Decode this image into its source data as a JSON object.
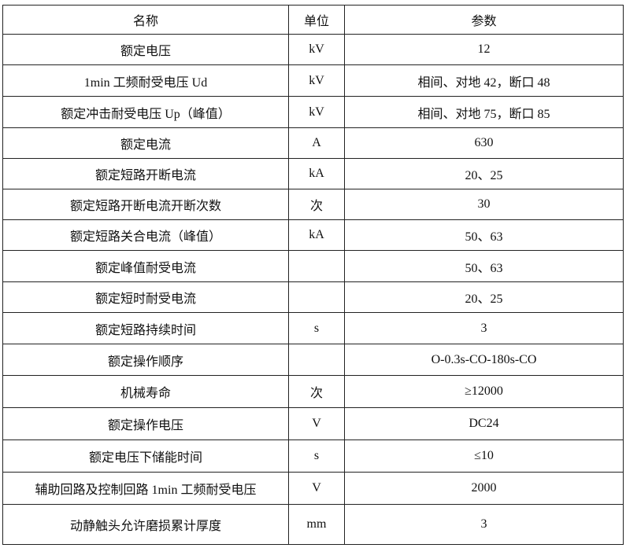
{
  "headers": [
    "名称",
    "单位",
    "参数"
  ],
  "rows": [
    {
      "name": "额定电压",
      "unit": "kV",
      "value": "12"
    },
    {
      "name": "1min 工频耐受电压 Ud",
      "unit": "kV",
      "value": "相间、对地 42，断口 48"
    },
    {
      "name": "额定冲击耐受电压 Up（峰值）",
      "unit": "kV",
      "value": "相间、对地 75，断口 85"
    },
    {
      "name": "额定电流",
      "unit": "A",
      "value": "630"
    },
    {
      "name": "额定短路开断电流",
      "unit": "kA",
      "value": "20、25"
    },
    {
      "name": "额定短路开断电流开断次数",
      "unit": "次",
      "value": "30"
    },
    {
      "name": "额定短路关合电流（峰值）",
      "unit": "kA",
      "value": "50、63"
    },
    {
      "name": "额定峰值耐受电流",
      "unit": "",
      "value": "50、63"
    },
    {
      "name": "额定短时耐受电流",
      "unit": "",
      "value": "20、25"
    },
    {
      "name": "额定短路持续时间",
      "unit": "s",
      "value": "3"
    },
    {
      "name": "额定操作顺序",
      "unit": "",
      "value": "O-0.3s-CO-180s-CO"
    },
    {
      "name": "机械寿命",
      "unit": "次",
      "value": "≥12000"
    },
    {
      "name": "额定操作电压",
      "unit": "V",
      "value": "DC24"
    },
    {
      "name": "额定电压下储能时间",
      "unit": "s",
      "value": "≤10"
    },
    {
      "name": "辅助回路及控制回路 1min 工频耐受电压",
      "unit": "V",
      "value": "2000"
    },
    {
      "name": "动静触头允许磨损累计厚度",
      "unit": "mm",
      "value": "3"
    }
  ]
}
